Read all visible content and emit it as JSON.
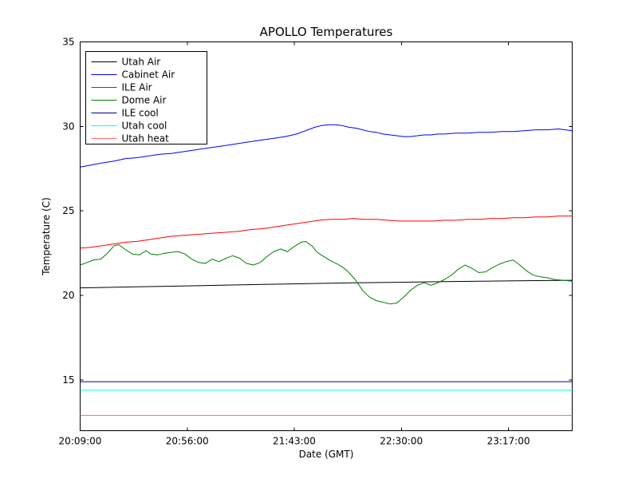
{
  "figure": {
    "background": "#ffffff",
    "frame_color": "#000000"
  },
  "chart_data": {
    "type": "line",
    "title": "APOLLO Temperatures",
    "xlabel": "Date (GMT)",
    "ylabel": "Temperature (C)",
    "grid": false,
    "legend_position": "upper left",
    "x_unit": "minutes after 20:09:00 GMT",
    "xlim": [
      0,
      216
    ],
    "ylim": [
      12,
      35
    ],
    "x_ticks": [
      {
        "pos": 0,
        "label": "20:09:00"
      },
      {
        "pos": 47,
        "label": "20:56:00"
      },
      {
        "pos": 94,
        "label": "21:43:00"
      },
      {
        "pos": 141,
        "label": "22:30:00"
      },
      {
        "pos": 188,
        "label": "23:17:00"
      }
    ],
    "y_ticks": [
      {
        "pos": 15,
        "label": "15"
      },
      {
        "pos": 20,
        "label": "20"
      },
      {
        "pos": 25,
        "label": "25"
      },
      {
        "pos": 30,
        "label": "30"
      },
      {
        "pos": 35,
        "label": "35"
      }
    ],
    "series": [
      {
        "name": "Utah Air",
        "color": "#000000",
        "points": [
          [
            0,
            20.45
          ],
          [
            20,
            20.5
          ],
          [
            40,
            20.55
          ],
          [
            60,
            20.6
          ],
          [
            80,
            20.65
          ],
          [
            100,
            20.7
          ],
          [
            120,
            20.75
          ],
          [
            140,
            20.78
          ],
          [
            160,
            20.82
          ],
          [
            180,
            20.85
          ],
          [
            200,
            20.88
          ],
          [
            216,
            20.9
          ]
        ]
      },
      {
        "name": "Cabinet Air",
        "color": "#0000ff",
        "points": [
          [
            0,
            27.6
          ],
          [
            5,
            27.72
          ],
          [
            10,
            27.85
          ],
          [
            15,
            27.95
          ],
          [
            20,
            28.1
          ],
          [
            25,
            28.15
          ],
          [
            30,
            28.25
          ],
          [
            35,
            28.35
          ],
          [
            40,
            28.4
          ],
          [
            45,
            28.5
          ],
          [
            50,
            28.6
          ],
          [
            55,
            28.7
          ],
          [
            60,
            28.8
          ],
          [
            65,
            28.9
          ],
          [
            70,
            29.0
          ],
          [
            75,
            29.1
          ],
          [
            80,
            29.2
          ],
          [
            85,
            29.3
          ],
          [
            90,
            29.4
          ],
          [
            95,
            29.55
          ],
          [
            100,
            29.8
          ],
          [
            103,
            29.95
          ],
          [
            106,
            30.05
          ],
          [
            109,
            30.1
          ],
          [
            112,
            30.1
          ],
          [
            115,
            30.05
          ],
          [
            118,
            29.95
          ],
          [
            121,
            29.9
          ],
          [
            124,
            29.8
          ],
          [
            127,
            29.7
          ],
          [
            130,
            29.65
          ],
          [
            133,
            29.55
          ],
          [
            136,
            29.5
          ],
          [
            139,
            29.45
          ],
          [
            142,
            29.4
          ],
          [
            145,
            29.4
          ],
          [
            148,
            29.45
          ],
          [
            151,
            29.5
          ],
          [
            154,
            29.5
          ],
          [
            157,
            29.55
          ],
          [
            160,
            29.55
          ],
          [
            165,
            29.6
          ],
          [
            170,
            29.6
          ],
          [
            175,
            29.65
          ],
          [
            180,
            29.65
          ],
          [
            185,
            29.7
          ],
          [
            190,
            29.7
          ],
          [
            195,
            29.75
          ],
          [
            200,
            29.8
          ],
          [
            205,
            29.8
          ],
          [
            210,
            29.85
          ],
          [
            213,
            29.8
          ],
          [
            216,
            29.75
          ]
        ]
      },
      {
        "name": "ILE Air",
        "color": "#ff0000",
        "points": [
          [
            0,
            22.8
          ],
          [
            5,
            22.85
          ],
          [
            10,
            22.95
          ],
          [
            15,
            23.05
          ],
          [
            20,
            23.15
          ],
          [
            25,
            23.2
          ],
          [
            30,
            23.3
          ],
          [
            35,
            23.4
          ],
          [
            40,
            23.5
          ],
          [
            45,
            23.55
          ],
          [
            50,
            23.6
          ],
          [
            55,
            23.65
          ],
          [
            60,
            23.7
          ],
          [
            65,
            23.75
          ],
          [
            70,
            23.8
          ],
          [
            75,
            23.9
          ],
          [
            80,
            23.95
          ],
          [
            85,
            24.05
          ],
          [
            90,
            24.15
          ],
          [
            95,
            24.25
          ],
          [
            100,
            24.35
          ],
          [
            105,
            24.45
          ],
          [
            110,
            24.5
          ],
          [
            115,
            24.5
          ],
          [
            120,
            24.55
          ],
          [
            125,
            24.5
          ],
          [
            130,
            24.5
          ],
          [
            135,
            24.45
          ],
          [
            140,
            24.4
          ],
          [
            145,
            24.4
          ],
          [
            150,
            24.4
          ],
          [
            155,
            24.4
          ],
          [
            160,
            24.45
          ],
          [
            165,
            24.45
          ],
          [
            170,
            24.5
          ],
          [
            175,
            24.5
          ],
          [
            180,
            24.55
          ],
          [
            185,
            24.55
          ],
          [
            190,
            24.6
          ],
          [
            195,
            24.6
          ],
          [
            200,
            24.65
          ],
          [
            205,
            24.65
          ],
          [
            210,
            24.7
          ],
          [
            216,
            24.7
          ]
        ]
      },
      {
        "name": "Dome Air",
        "color": "#007f00",
        "points": [
          [
            0,
            21.8
          ],
          [
            3,
            21.95
          ],
          [
            6,
            22.1
          ],
          [
            9,
            22.15
          ],
          [
            12,
            22.5
          ],
          [
            15,
            22.95
          ],
          [
            17,
            23.0
          ],
          [
            20,
            22.7
          ],
          [
            23,
            22.45
          ],
          [
            26,
            22.4
          ],
          [
            29,
            22.65
          ],
          [
            31,
            22.45
          ],
          [
            34,
            22.4
          ],
          [
            37,
            22.5
          ],
          [
            40,
            22.55
          ],
          [
            43,
            22.6
          ],
          [
            46,
            22.45
          ],
          [
            49,
            22.15
          ],
          [
            52,
            21.95
          ],
          [
            55,
            21.9
          ],
          [
            58,
            22.15
          ],
          [
            61,
            22.0
          ],
          [
            64,
            22.2
          ],
          [
            67,
            22.35
          ],
          [
            70,
            22.2
          ],
          [
            73,
            21.9
          ],
          [
            76,
            21.8
          ],
          [
            79,
            21.95
          ],
          [
            82,
            22.3
          ],
          [
            85,
            22.6
          ],
          [
            88,
            22.75
          ],
          [
            91,
            22.6
          ],
          [
            94,
            22.9
          ],
          [
            97,
            23.15
          ],
          [
            99,
            23.2
          ],
          [
            102,
            22.9
          ],
          [
            104,
            22.55
          ],
          [
            107,
            22.3
          ],
          [
            110,
            22.05
          ],
          [
            113,
            21.85
          ],
          [
            116,
            21.6
          ],
          [
            118,
            21.35
          ],
          [
            121,
            20.9
          ],
          [
            124,
            20.3
          ],
          [
            127,
            19.9
          ],
          [
            130,
            19.7
          ],
          [
            133,
            19.6
          ],
          [
            136,
            19.5
          ],
          [
            139,
            19.55
          ],
          [
            142,
            19.9
          ],
          [
            145,
            20.3
          ],
          [
            148,
            20.6
          ],
          [
            151,
            20.75
          ],
          [
            154,
            20.6
          ],
          [
            157,
            20.75
          ],
          [
            160,
            20.95
          ],
          [
            163,
            21.2
          ],
          [
            166,
            21.55
          ],
          [
            169,
            21.8
          ],
          [
            172,
            21.6
          ],
          [
            175,
            21.35
          ],
          [
            178,
            21.4
          ],
          [
            181,
            21.65
          ],
          [
            184,
            21.85
          ],
          [
            187,
            22.0
          ],
          [
            190,
            22.1
          ],
          [
            193,
            21.8
          ],
          [
            196,
            21.45
          ],
          [
            199,
            21.2
          ],
          [
            202,
            21.1
          ],
          [
            205,
            21.05
          ],
          [
            208,
            20.95
          ],
          [
            212,
            20.9
          ],
          [
            216,
            20.85
          ]
        ]
      },
      {
        "name": "ILE cool",
        "color": "#00008b",
        "points": [
          [
            0,
            14.9
          ],
          [
            216,
            14.9
          ]
        ]
      },
      {
        "name": "Utah cool",
        "color": "#00ffff",
        "points": [
          [
            0,
            14.4
          ],
          [
            216,
            14.4
          ]
        ]
      },
      {
        "name": "Utah heat",
        "color": "#ff6a6a",
        "points": [
          [
            0,
            12.9
          ],
          [
            216,
            12.9
          ]
        ]
      }
    ]
  }
}
